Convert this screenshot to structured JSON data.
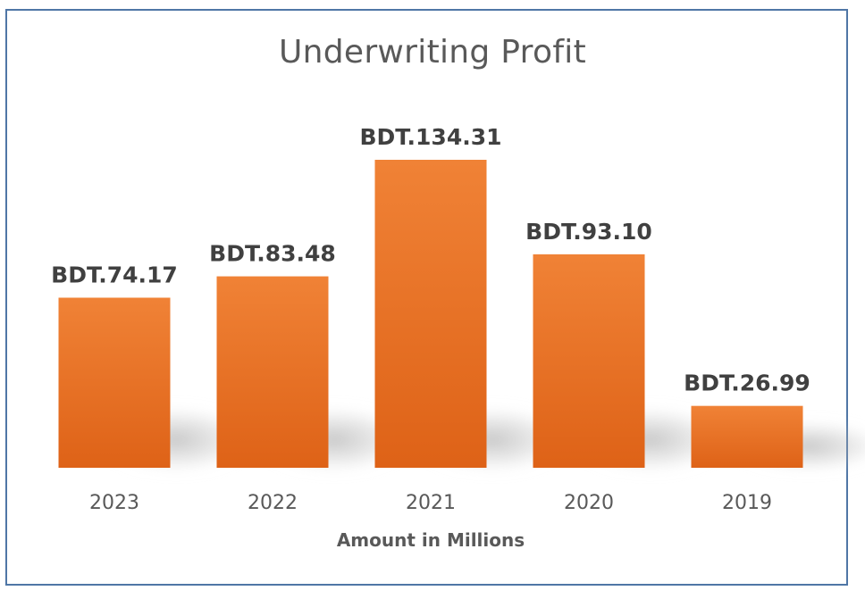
{
  "chart_data": {
    "type": "bar",
    "title": "Underwriting Profit",
    "xlabel": "Amount in Millions",
    "ylabel": "",
    "categories": [
      "2023",
      "2022",
      "2021",
      "2020",
      "2019"
    ],
    "values": [
      74.17,
      83.48,
      134.31,
      93.1,
      26.99
    ],
    "data_labels": [
      "BDT.74.17",
      "BDT.83.48",
      "BDT.134.31",
      "BDT.93.10",
      "BDT.26.99"
    ],
    "ylim": [
      0,
      134.31
    ],
    "grid": false,
    "legend": "none",
    "colors": {
      "bar_top": "#f08236",
      "bar_bottom": "#de6217",
      "border": "#4f76a6",
      "title_text": "#595959",
      "label_text": "#404040"
    }
  }
}
